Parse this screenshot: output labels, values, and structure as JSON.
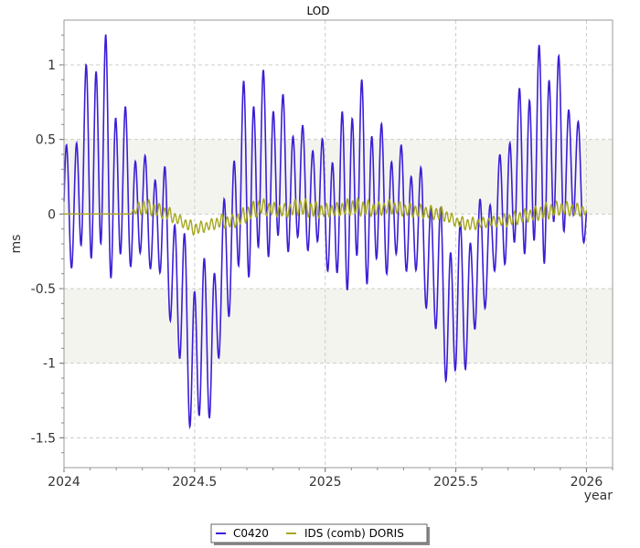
{
  "chart_data": {
    "type": "line",
    "title": "LOD",
    "xlabel": "year",
    "ylabel": "ms",
    "xlim": [
      2024.0,
      2026.1
    ],
    "ylim": [
      -1.7,
      1.3
    ],
    "x_ticks": [
      2024,
      2024.5,
      2025,
      2025.5,
      2026
    ],
    "x_tick_labels": [
      "2024",
      "2024.5",
      "2025",
      "2025.5",
      "2026"
    ],
    "y_ticks": [
      1,
      0.5,
      0,
      -0.5,
      -1,
      -1.5
    ],
    "y_tick_labels": [
      "1",
      "0.5",
      "0",
      "-0.5",
      "-1",
      "-1.5"
    ],
    "grid": true,
    "shaded_bands": [
      {
        "from": 0.0,
        "to": 0.5,
        "color": "#f4f4ef"
      },
      {
        "from": -1.0,
        "to": -0.5,
        "color": "#f4f4ef"
      }
    ],
    "legend_position": "bottom-center",
    "series": [
      {
        "name": "C0420",
        "color": "#3a1fd6",
        "x": [
          2024.0,
          2024.04,
          2024.08,
          2024.12,
          2024.16,
          2024.2,
          2024.24,
          2024.28,
          2024.32,
          2024.36,
          2024.4,
          2024.44,
          2024.48,
          2024.5,
          2024.52,
          2024.56,
          2024.6,
          2024.64,
          2024.68,
          2024.72,
          2024.76,
          2024.8,
          2024.84,
          2024.88,
          2024.92,
          2024.96,
          2025.0,
          2025.04,
          2025.08,
          2025.12,
          2025.16,
          2025.2,
          2025.24,
          2025.28,
          2025.32,
          2025.36,
          2025.4,
          2025.44,
          2025.48,
          2025.52,
          2025.56,
          2025.6,
          2025.64,
          2025.68,
          2025.72,
          2025.76,
          2025.8,
          2025.84,
          2025.88,
          2025.92,
          2025.96,
          2026.0
        ],
        "values": [
          0.0,
          0.1,
          0.3,
          0.45,
          0.35,
          0.2,
          0.15,
          0.05,
          0.0,
          -0.05,
          -0.2,
          -0.55,
          -0.85,
          -0.95,
          -0.9,
          -0.85,
          -0.55,
          -0.1,
          0.2,
          0.25,
          0.3,
          0.3,
          0.25,
          0.2,
          0.15,
          0.15,
          0.05,
          0.0,
          0.1,
          0.25,
          0.15,
          0.1,
          0.05,
          0.05,
          0.0,
          -0.1,
          -0.25,
          -0.5,
          -0.65,
          -0.6,
          -0.5,
          -0.3,
          -0.15,
          0.05,
          0.2,
          0.3,
          0.35,
          0.4,
          0.45,
          0.4,
          0.3,
          0.0
        ],
        "amplitude": [
          0.35,
          0.4,
          0.55,
          0.65,
          0.7,
          0.55,
          0.45,
          0.35,
          0.3,
          0.35,
          0.4,
          0.45,
          0.5,
          0.55,
          0.5,
          0.45,
          0.4,
          0.45,
          0.55,
          0.6,
          0.55,
          0.5,
          0.45,
          0.4,
          0.35,
          0.35,
          0.35,
          0.45,
          0.55,
          0.6,
          0.55,
          0.45,
          0.4,
          0.35,
          0.35,
          0.35,
          0.4,
          0.45,
          0.5,
          0.45,
          0.4,
          0.35,
          0.3,
          0.35,
          0.45,
          0.5,
          0.6,
          0.65,
          0.55,
          0.45,
          0.35,
          0.2
        ],
        "oscillation_period_years": 0.0377
      },
      {
        "name": "IDS (comb) DORIS",
        "color": "#a6a61f",
        "x": [
          2024.0,
          2024.25,
          2024.3,
          2024.35,
          2024.4,
          2024.45,
          2024.5,
          2024.55,
          2024.6,
          2024.65,
          2024.7,
          2024.75,
          2024.8,
          2024.85,
          2024.9,
          2024.95,
          2025.0,
          2025.05,
          2025.1,
          2025.15,
          2025.2,
          2025.25,
          2025.3,
          2025.35,
          2025.4,
          2025.45,
          2025.5,
          2025.55,
          2025.6,
          2025.65,
          2025.7,
          2025.75,
          2025.8,
          2025.85,
          2025.9,
          2025.95,
          2026.0
        ],
        "values": [
          0.0,
          0.0,
          0.05,
          0.03,
          0.0,
          -0.05,
          -0.1,
          -0.08,
          -0.05,
          -0.05,
          0.0,
          0.05,
          0.03,
          0.02,
          0.05,
          0.03,
          0.02,
          0.03,
          0.05,
          0.04,
          0.03,
          0.05,
          0.03,
          0.02,
          0.01,
          0.0,
          -0.05,
          -0.07,
          -0.06,
          -0.05,
          -0.04,
          -0.02,
          0.0,
          0.02,
          0.04,
          0.03,
          0.02
        ],
        "amplitude": [
          0.0,
          0.0,
          0.05,
          0.04,
          0.04,
          0.03,
          0.04,
          0.03,
          0.04,
          0.04,
          0.05,
          0.05,
          0.04,
          0.04,
          0.05,
          0.05,
          0.04,
          0.04,
          0.05,
          0.05,
          0.04,
          0.04,
          0.04,
          0.04,
          0.04,
          0.04,
          0.03,
          0.04,
          0.03,
          0.03,
          0.04,
          0.04,
          0.04,
          0.05,
          0.04,
          0.04,
          0.03
        ],
        "oscillation_period_years": 0.02
      }
    ]
  }
}
